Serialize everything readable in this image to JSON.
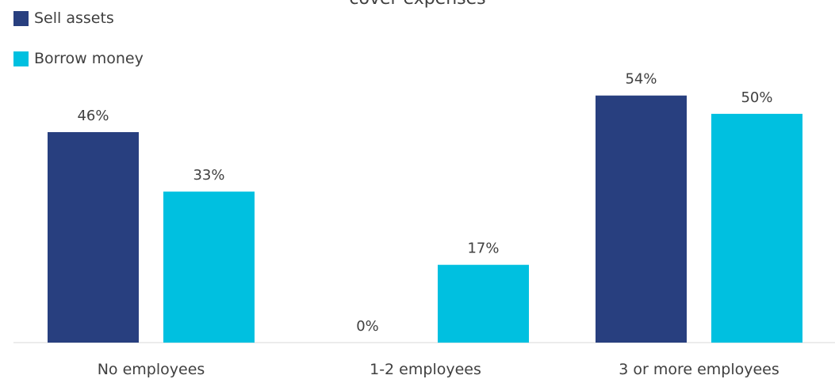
{
  "chart_data": {
    "type": "bar",
    "title": "cover expenses",
    "categories": [
      "No employees",
      "1-2 employees",
      "3 or more employees"
    ],
    "series": [
      {
        "name": "Sell assets",
        "values": [
          46,
          0,
          54
        ],
        "labels": [
          "46%",
          "0%",
          "54%"
        ],
        "color": "#283f7f"
      },
      {
        "name": "Borrow money",
        "values": [
          33,
          17,
          50
        ],
        "labels": [
          "33%",
          "17%",
          "50%"
        ],
        "color": "#00c0e0"
      }
    ],
    "ylim": [
      0,
      60
    ],
    "grid": false,
    "legend_position": "top-left"
  }
}
